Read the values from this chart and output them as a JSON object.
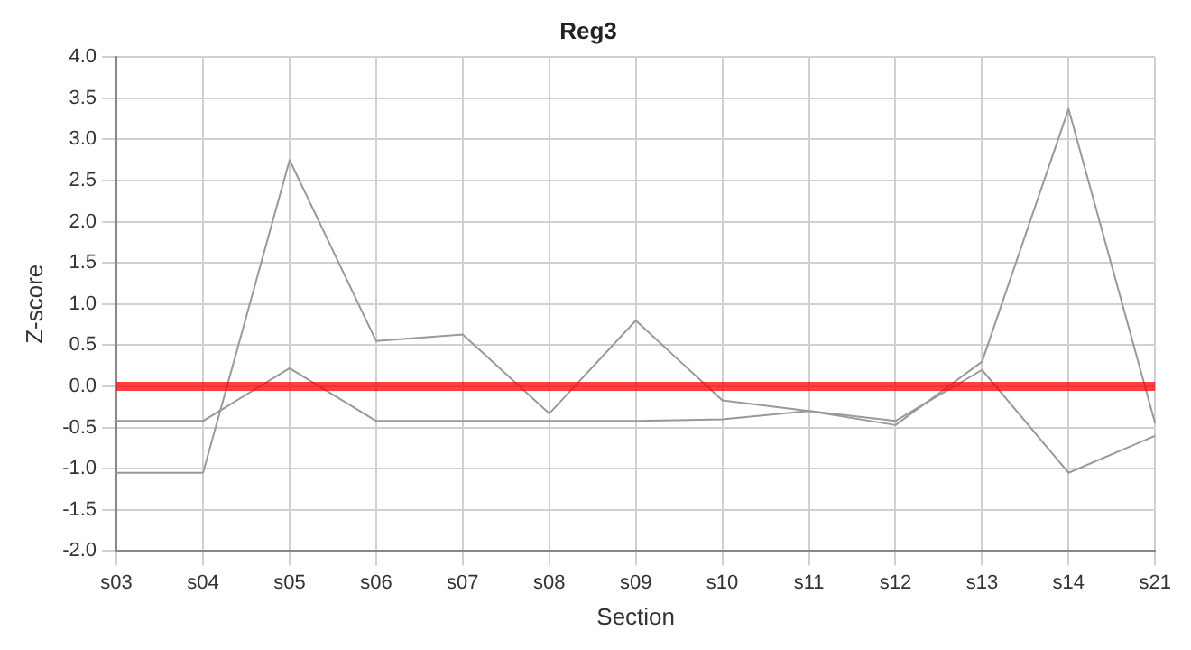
{
  "chart_data": {
    "type": "line",
    "title": "Reg3",
    "xlabel": "Section",
    "ylabel": "Z-score",
    "categories": [
      "s03",
      "s04",
      "s05",
      "s06",
      "s07",
      "s08",
      "s09",
      "s10",
      "s11",
      "s12",
      "s13",
      "s14",
      "s21"
    ],
    "series": [
      {
        "color": "#999999",
        "values": [
          -1.05,
          -1.05,
          2.75,
          0.55,
          0.63,
          -0.33,
          0.8,
          -0.17,
          -0.3,
          -0.47,
          0.3,
          3.37,
          -0.45
        ]
      },
      {
        "color": "#999999",
        "values": [
          -0.42,
          -0.42,
          0.22,
          -0.42,
          -0.42,
          -0.42,
          -0.42,
          -0.4,
          -0.3,
          -0.42,
          0.2,
          -1.05,
          -0.6
        ]
      }
    ],
    "ylim": [
      -2,
      4
    ],
    "yticks": [
      {
        "value": -2,
        "label": "-2.0"
      },
      {
        "value": -1.5,
        "label": "-1.5"
      },
      {
        "value": -1,
        "label": "-1.0"
      },
      {
        "value": -0.5,
        "label": "-0.5"
      },
      {
        "value": 0,
        "label": "0.0"
      },
      {
        "value": 0.5,
        "label": "0.5"
      },
      {
        "value": 1,
        "label": "1.0"
      },
      {
        "value": 1.5,
        "label": "1.5"
      },
      {
        "value": 2,
        "label": "2.0"
      },
      {
        "value": 2.5,
        "label": "2.5"
      },
      {
        "value": 3,
        "label": "3.0"
      },
      {
        "value": 3.5,
        "label": "3.5"
      },
      {
        "value": 4,
        "label": "4.0"
      }
    ],
    "ref_lines": [
      {
        "axis": "y",
        "value": 0,
        "color": "#ff0000"
      }
    ],
    "grid": true,
    "legend": false,
    "marker": "none",
    "line_style": "solid"
  }
}
